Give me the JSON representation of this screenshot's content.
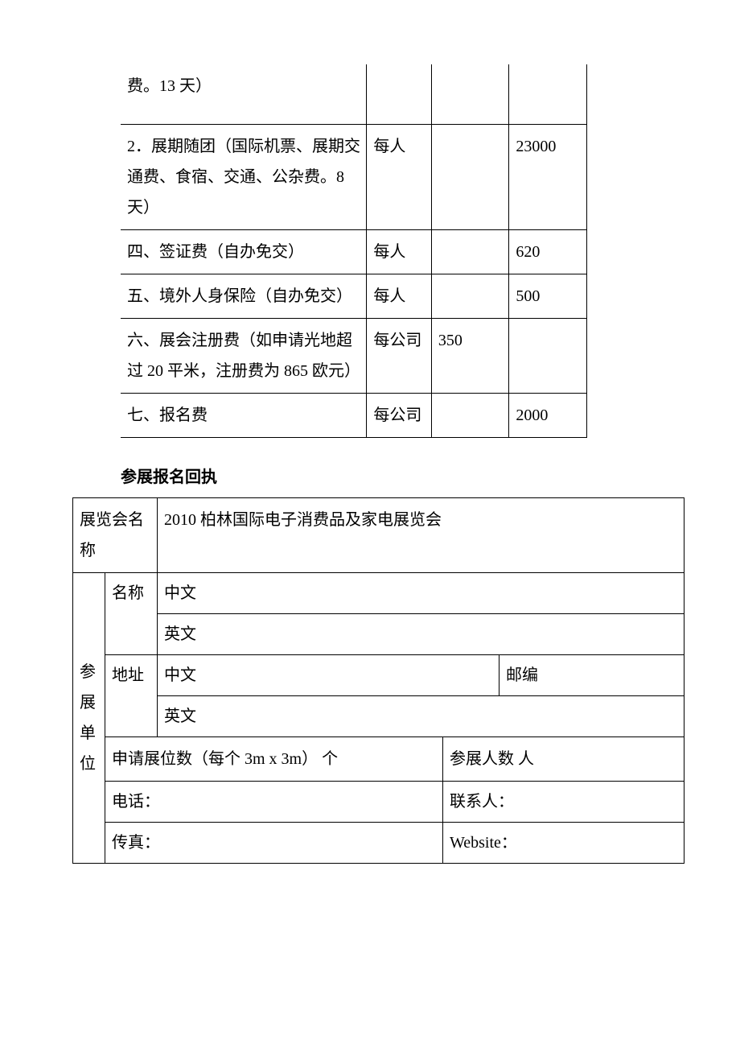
{
  "fees": {
    "row0": {
      "desc": "费。13 天）",
      "unit": "",
      "eur": "",
      "rmb": ""
    },
    "row1": {
      "desc": "2．展期随团（国际机票、展期交通费、食宿、交通、公杂费。8 天）",
      "unit": "每人",
      "eur": "",
      "rmb": "23000"
    },
    "row2": {
      "desc": "四、签证费（自办免交）",
      "unit": "每人",
      "eur": "",
      "rmb": "620"
    },
    "row3": {
      "desc": "五、境外人身保险（自办免交）",
      "unit": "每人",
      "eur": "",
      "rmb": "500"
    },
    "row4": {
      "desc": "六、展会注册费（如申请光地超过 20 平米，注册费为 865 欧元）",
      "unit": "每公司",
      "eur": "350",
      "rmb": ""
    },
    "row5": {
      "desc": "七、报名费",
      "unit": "每公司",
      "eur": "",
      "rmb": "2000"
    }
  },
  "form": {
    "heading": "参展报名回执",
    "exhibitionLabel": "展览会名称",
    "exhibitionName": "2010 柏林国际电子消费品及家电展览会",
    "unitLabel": "参展单位",
    "nameLabel": "名称",
    "cn": "中文",
    "en": "英文",
    "addrLabel": "地址",
    "postcode": "邮编",
    "boothApply": "申请展位数（每个 3m x 3m）    个",
    "attendees": "参展人数      人",
    "phone": "电话：",
    "contact": "联系人：",
    "fax": "传真：",
    "website": "Website："
  }
}
